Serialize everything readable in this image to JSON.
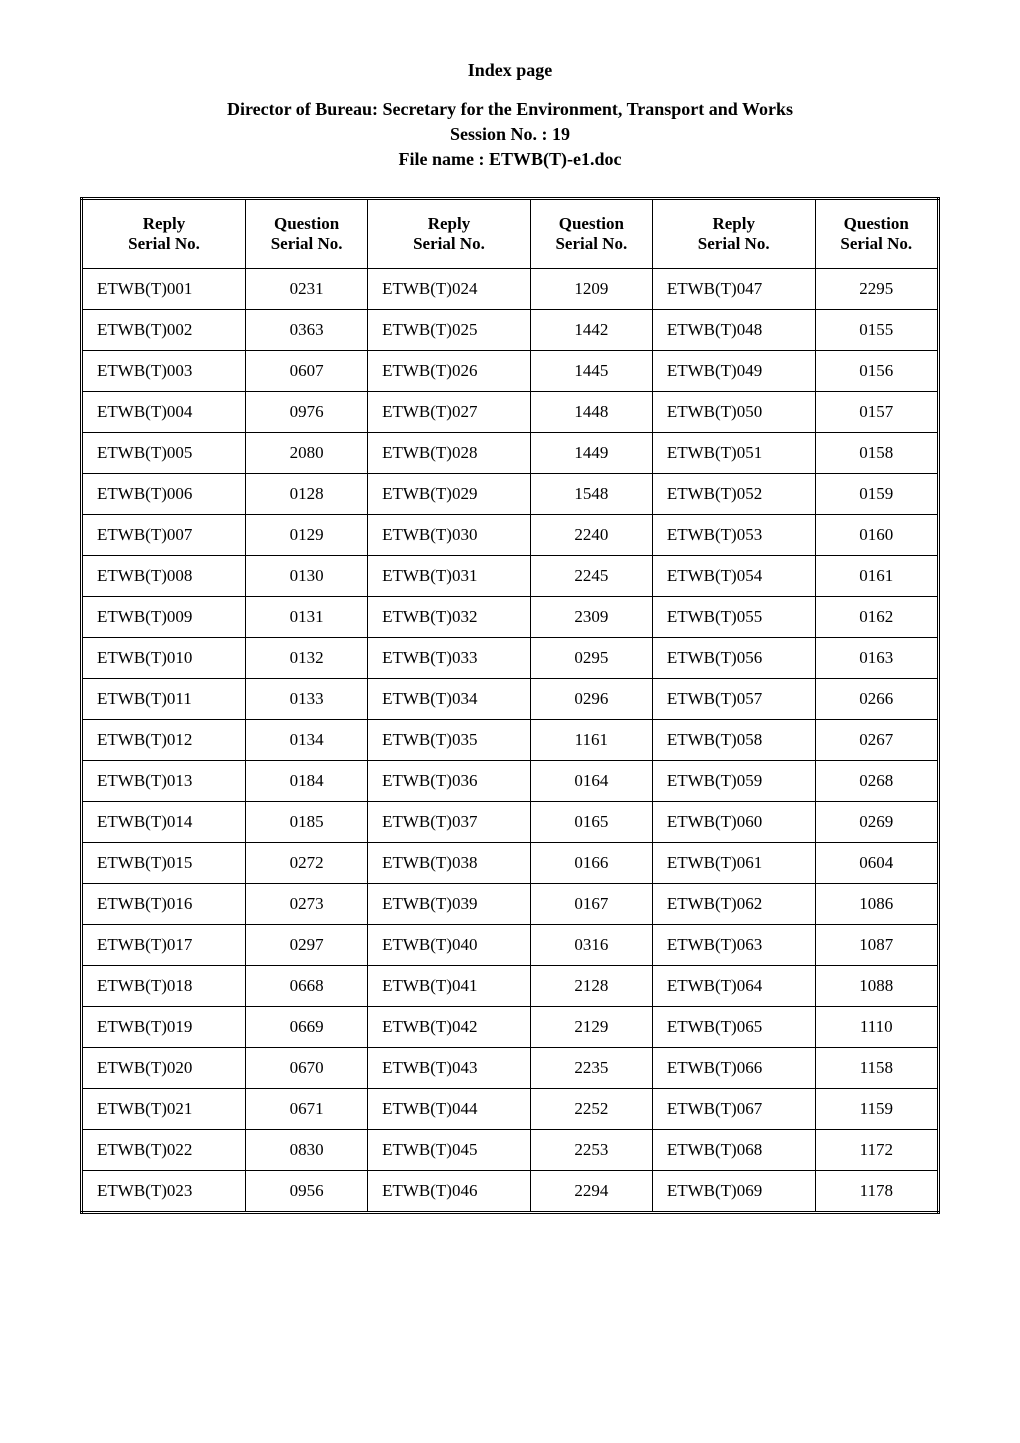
{
  "page_title": "Index page",
  "header_line1": "Director of Bureau: Secretary for the Environment, Transport and Works",
  "header_line2": "Session No. : 19",
  "header_line3": "File name : ETWB(T)-e1.doc",
  "columns": [
    "Reply Serial No.",
    "Question Serial No.",
    "Reply Serial No.",
    "Question Serial No.",
    "Reply Serial No.",
    "Question Serial No."
  ],
  "col_header_reply": "Reply",
  "col_header_serial": "Serial No.",
  "col_header_question": "Question",
  "rows": [
    [
      "ETWB(T)001",
      "0231",
      "ETWB(T)024",
      "1209",
      "ETWB(T)047",
      "2295"
    ],
    [
      "ETWB(T)002",
      "0363",
      "ETWB(T)025",
      "1442",
      "ETWB(T)048",
      "0155"
    ],
    [
      "ETWB(T)003",
      "0607",
      "ETWB(T)026",
      "1445",
      "ETWB(T)049",
      "0156"
    ],
    [
      "ETWB(T)004",
      "0976",
      "ETWB(T)027",
      "1448",
      "ETWB(T)050",
      "0157"
    ],
    [
      "ETWB(T)005",
      "2080",
      "ETWB(T)028",
      "1449",
      "ETWB(T)051",
      "0158"
    ],
    [
      "ETWB(T)006",
      "0128",
      "ETWB(T)029",
      "1548",
      "ETWB(T)052",
      "0159"
    ],
    [
      "ETWB(T)007",
      "0129",
      "ETWB(T)030",
      "2240",
      "ETWB(T)053",
      "0160"
    ],
    [
      "ETWB(T)008",
      "0130",
      "ETWB(T)031",
      "2245",
      "ETWB(T)054",
      "0161"
    ],
    [
      "ETWB(T)009",
      "0131",
      "ETWB(T)032",
      "2309",
      "ETWB(T)055",
      "0162"
    ],
    [
      "ETWB(T)010",
      "0132",
      "ETWB(T)033",
      "0295",
      "ETWB(T)056",
      "0163"
    ],
    [
      "ETWB(T)011",
      "0133",
      "ETWB(T)034",
      "0296",
      "ETWB(T)057",
      "0266"
    ],
    [
      "ETWB(T)012",
      "0134",
      "ETWB(T)035",
      "1161",
      "ETWB(T)058",
      "0267"
    ],
    [
      "ETWB(T)013",
      "0184",
      "ETWB(T)036",
      "0164",
      "ETWB(T)059",
      "0268"
    ],
    [
      "ETWB(T)014",
      "0185",
      "ETWB(T)037",
      "0165",
      "ETWB(T)060",
      "0269"
    ],
    [
      "ETWB(T)015",
      "0272",
      "ETWB(T)038",
      "0166",
      "ETWB(T)061",
      "0604"
    ],
    [
      "ETWB(T)016",
      "0273",
      "ETWB(T)039",
      "0167",
      "ETWB(T)062",
      "1086"
    ],
    [
      "ETWB(T)017",
      "0297",
      "ETWB(T)040",
      "0316",
      "ETWB(T)063",
      "1087"
    ],
    [
      "ETWB(T)018",
      "0668",
      "ETWB(T)041",
      "2128",
      "ETWB(T)064",
      "1088"
    ],
    [
      "ETWB(T)019",
      "0669",
      "ETWB(T)042",
      "2129",
      "ETWB(T)065",
      "1110"
    ],
    [
      "ETWB(T)020",
      "0670",
      "ETWB(T)043",
      "2235",
      "ETWB(T)066",
      "1158"
    ],
    [
      "ETWB(T)021",
      "0671",
      "ETWB(T)044",
      "2252",
      "ETWB(T)067",
      "1159"
    ],
    [
      "ETWB(T)022",
      "0830",
      "ETWB(T)045",
      "2253",
      "ETWB(T)068",
      "1172"
    ],
    [
      "ETWB(T)023",
      "0956",
      "ETWB(T)046",
      "2294",
      "ETWB(T)069",
      "1178"
    ]
  ],
  "styling": {
    "background_color": "#ffffff",
    "text_color": "#000000",
    "border_color": "#000000",
    "font_family": "Times New Roman",
    "title_fontsize": 18,
    "cell_fontsize": 17,
    "outer_border": "3px double",
    "inner_border": "1px solid"
  }
}
